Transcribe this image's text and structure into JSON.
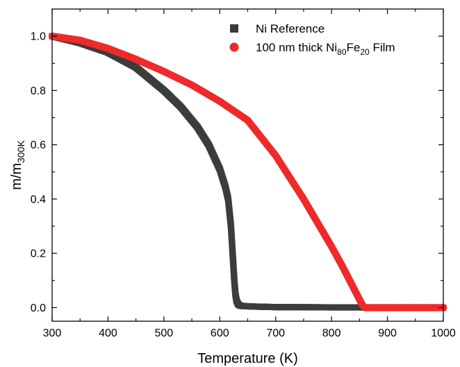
{
  "chart_data": {
    "type": "scatter",
    "xlabel": "Temperature (K)",
    "ylabel": {
      "main": "m/m",
      "sub": "300K"
    },
    "xlim": [
      300,
      1000
    ],
    "ylim": [
      -0.05,
      1.1
    ],
    "x_ticks": [
      "300",
      "400",
      "500",
      "600",
      "700",
      "800",
      "900",
      "1000"
    ],
    "y_ticks": [
      "0.0",
      "0.2",
      "0.4",
      "0.6",
      "0.8",
      "1.0"
    ],
    "legend_position": "top-right",
    "legend": [
      {
        "marker": "square",
        "color": "#3c3c3c",
        "parts": [
          {
            "t": "Ni Reference"
          }
        ]
      },
      {
        "marker": "circle",
        "color": "#ee2a2a",
        "parts": [
          {
            "t": "100 nm thick Ni"
          },
          {
            "t": "80",
            "sub": true
          },
          {
            "t": "Fe"
          },
          {
            "t": "20",
            "sub": true
          },
          {
            "t": " Film"
          }
        ]
      }
    ],
    "series": [
      {
        "color": "#3c3c3c",
        "marker": "square",
        "x": [
          300,
          350,
          400,
          450,
          500,
          530,
          560,
          580,
          600,
          610,
          615,
          620,
          623,
          626,
          628,
          630,
          633,
          636,
          640,
          650,
          660,
          680,
          700,
          750,
          800,
          850,
          900,
          950,
          1000
        ],
        "y": [
          1.0,
          0.975,
          0.94,
          0.885,
          0.8,
          0.74,
          0.665,
          0.6,
          0.51,
          0.445,
          0.4,
          0.3,
          0.2,
          0.1,
          0.05,
          0.025,
          0.012,
          0.008,
          0.006,
          0.005,
          0.004,
          0.003,
          0.002,
          0.0015,
          0.001,
          0.001,
          0.0,
          0.0,
          0.0
        ]
      },
      {
        "color": "#ee2a2a",
        "marker": "circle",
        "x": [
          300,
          350,
          400,
          450,
          500,
          550,
          600,
          650,
          700,
          750,
          800,
          820,
          840,
          850,
          855,
          860,
          870,
          900,
          950,
          1000
        ],
        "y": [
          1.0,
          0.985,
          0.955,
          0.915,
          0.87,
          0.82,
          0.76,
          0.69,
          0.56,
          0.4,
          0.225,
          0.15,
          0.07,
          0.03,
          0.01,
          0.0,
          0.0,
          0.0,
          0.0,
          0.0
        ]
      }
    ]
  }
}
